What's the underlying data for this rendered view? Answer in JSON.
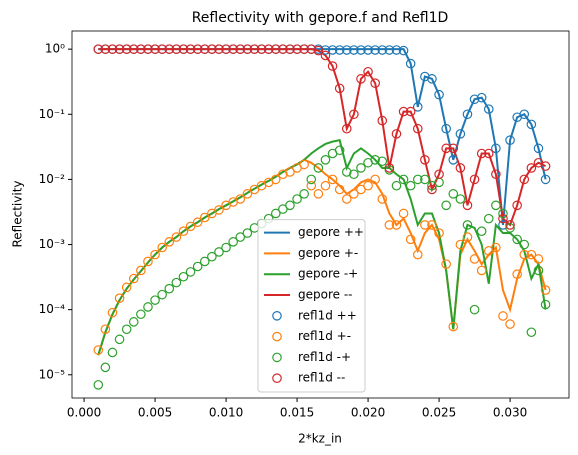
{
  "chart_data": {
    "type": "line",
    "title": "Reflectivity with gepore.f and Refl1D",
    "x_label": "2*kz_in",
    "y_label": "Reflectivity",
    "xlim": [
      -0.00085,
      0.03415
    ],
    "ylim": [
      4.4e-06,
      1.9
    ],
    "y_scale": "log",
    "legend": "lower center",
    "xticks": [
      {
        "value": 0,
        "label": "0.000"
      },
      0.005,
      {
        "value": 0.01,
        "label": "0.010"
      },
      0.015,
      {
        "value": 0.02,
        "label": "0.020"
      },
      0.025,
      {
        "value": 0.03,
        "label": "0.030"
      }
    ],
    "yticks": [
      {
        "value": 1e-05,
        "label": "10⁻⁵"
      },
      {
        "value": 0.0001,
        "label": "10⁻⁴"
      },
      {
        "value": 0.001,
        "label": "10⁻³"
      },
      {
        "value": 0.01,
        "label": "10⁻²"
      },
      {
        "value": 0.1,
        "label": "10⁻¹"
      },
      {
        "value": 1,
        "label": "10⁰"
      }
    ],
    "x": [
      0.001,
      0.0015,
      0.002,
      0.0025,
      0.003,
      0.0035,
      0.004,
      0.0045,
      0.005,
      0.0055,
      0.006,
      0.0065,
      0.007,
      0.0075,
      0.008,
      0.0085,
      0.009,
      0.0095,
      0.01,
      0.0105,
      0.011,
      0.0115,
      0.012,
      0.0125,
      0.013,
      0.0135,
      0.014,
      0.0145,
      0.015,
      0.0155,
      0.016,
      0.0165,
      0.017,
      0.0175,
      0.018,
      0.0185,
      0.019,
      0.0195,
      0.02,
      0.0205,
      0.021,
      0.0215,
      0.022,
      0.0225,
      0.023,
      0.0235,
      0.024,
      0.0245,
      0.025,
      0.0255,
      0.026,
      0.0265,
      0.027,
      0.0275,
      0.028,
      0.0285,
      0.029,
      0.0295,
      0.03,
      0.0305,
      0.031,
      0.0315,
      0.032,
      0.0325
    ],
    "series": [
      {
        "name": "gepore ++",
        "color": "#1f77b4",
        "mode": "line",
        "values": [
          1,
          1,
          1,
          1,
          1,
          1,
          1,
          1,
          1,
          1,
          1,
          1,
          1,
          1,
          1,
          1,
          1,
          1,
          1,
          1,
          1,
          1,
          1,
          1,
          1,
          1,
          1,
          1,
          1,
          1,
          1,
          1,
          1,
          1,
          1,
          1,
          1,
          1,
          1,
          1,
          1,
          1,
          1,
          1,
          0.6,
          0.13,
          0.38,
          0.35,
          0.2,
          0.06,
          0.02,
          0.05,
          0.1,
          0.17,
          0.18,
          0.12,
          0.03,
          0.002,
          0.04,
          0.09,
          0.1,
          0.07,
          0.03,
          0.01
        ]
      },
      {
        "name": "gepore +-",
        "color": "#ff7f0e",
        "mode": "line",
        "values": [
          2e-05,
          4.5e-05,
          8.5e-05,
          0.00014,
          0.00021,
          0.00029,
          0.00039,
          0.00053,
          0.0007,
          0.0009,
          0.0011,
          0.0013,
          0.0016,
          0.0019,
          0.0022,
          0.0026,
          0.003,
          0.0035,
          0.004,
          0.0046,
          0.0053,
          0.0062,
          0.0072,
          0.0083,
          0.0095,
          0.011,
          0.013,
          0.015,
          0.017,
          0.02,
          0.018,
          0.015,
          0.012,
          0.01,
          0.008,
          0.006,
          0.007,
          0.009,
          0.01,
          0.009,
          0.006,
          0.003,
          0.002,
          0.0025,
          0.0015,
          0.0008,
          0.0015,
          0.002,
          0.0012,
          0.0004,
          5e-05,
          0.0007,
          0.0012,
          0.0008,
          0.0005,
          0.0007,
          0.0009,
          0.0002,
          0.0001,
          0.0003,
          0.0006,
          0.0007,
          0.0005,
          0.0002
        ]
      },
      {
        "name": "gepore -+",
        "color": "#2ca02c",
        "mode": "line",
        "values": [
          2e-05,
          4.5e-05,
          8.5e-05,
          0.00014,
          0.00021,
          0.00029,
          0.00039,
          0.00053,
          0.0007,
          0.0009,
          0.0011,
          0.0013,
          0.0016,
          0.0019,
          0.0022,
          0.0026,
          0.003,
          0.0035,
          0.004,
          0.0046,
          0.0053,
          0.0062,
          0.0072,
          0.0083,
          0.0095,
          0.011,
          0.013,
          0.015,
          0.017,
          0.02,
          0.025,
          0.03,
          0.035,
          0.038,
          0.04,
          0.015,
          0.025,
          0.03,
          0.025,
          0.02,
          0.015,
          0.015,
          0.012,
          0.01,
          0.005,
          0.002,
          0.003,
          0.003,
          0.0015,
          0.0004,
          5e-05,
          0.0008,
          0.002,
          0.0018,
          0.001,
          0.00025,
          0.002,
          0.0015,
          0.0015,
          0.0012,
          0.0008,
          0.0003,
          0.0005,
          0.0001
        ]
      },
      {
        "name": "gepore --",
        "color": "#d62728",
        "mode": "line",
        "values": [
          1,
          1,
          1,
          1,
          1,
          1,
          1,
          1,
          1,
          1,
          1,
          1,
          1,
          1,
          1,
          1,
          1,
          1,
          1,
          1,
          1,
          1,
          1,
          1,
          1,
          1,
          1,
          1,
          1,
          1,
          1,
          0.95,
          0.8,
          0.55,
          0.25,
          0.06,
          0.1,
          0.35,
          0.45,
          0.3,
          0.08,
          0.015,
          0.05,
          0.11,
          0.11,
          0.06,
          0.02,
          0.007,
          0.012,
          0.03,
          0.03,
          0.015,
          0.004,
          0.01,
          0.025,
          0.025,
          0.012,
          0.0025,
          0.002,
          0.004,
          0.01,
          0.015,
          0.018,
          0.016
        ]
      },
      {
        "name": "refl1d ++",
        "color": "#1f77b4",
        "mode": "markers",
        "values": [
          1,
          1,
          1,
          1,
          1,
          1,
          1,
          1,
          1,
          1,
          1,
          1,
          1,
          1,
          1,
          1,
          1,
          1,
          1,
          1,
          1,
          1,
          1,
          1,
          1,
          1,
          1,
          1,
          1,
          1,
          1,
          1,
          0.97,
          0.97,
          0.97,
          0.97,
          0.97,
          0.97,
          0.97,
          0.97,
          0.97,
          0.97,
          0.97,
          0.95,
          0.6,
          0.13,
          0.38,
          0.35,
          0.2,
          0.06,
          0.02,
          0.05,
          0.1,
          0.17,
          0.18,
          0.12,
          0.03,
          0.002,
          0.04,
          0.09,
          0.1,
          0.07,
          0.03,
          0.01
        ]
      },
      {
        "name": "refl1d +-",
        "color": "#ff7f0e",
        "mode": "markers",
        "values": [
          2.4e-05,
          5e-05,
          9e-05,
          0.00015,
          0.00022,
          0.0003,
          0.0004,
          0.00055,
          0.0007,
          0.0009,
          0.0011,
          0.0013,
          0.0016,
          0.0019,
          0.0022,
          0.0026,
          0.003,
          0.0034,
          0.004,
          0.0045,
          0.005,
          0.006,
          0.007,
          0.008,
          0.009,
          0.01,
          0.012,
          0.013,
          0.015,
          0.017,
          0.008,
          0.006,
          0.008,
          0.01,
          0.007,
          0.005,
          0.006,
          0.007,
          0.008,
          0.01,
          0.005,
          0.002,
          0.002,
          0.003,
          0.0012,
          0.0007,
          0.002,
          0.002,
          0.0015,
          0.0005,
          5.5e-05,
          0.001,
          0.0013,
          0.0006,
          0.0004,
          0.0008,
          0.0009,
          8e-05,
          6e-05,
          0.00035,
          0.0007,
          0.0007,
          0.0006,
          0.0002
        ]
      },
      {
        "name": "refl1d -+",
        "color": "#2ca02c",
        "mode": "markers",
        "values": [
          7e-06,
          1.3e-05,
          2.2e-05,
          3.5e-05,
          5e-05,
          6.5e-05,
          8.5e-05,
          0.00011,
          0.00014,
          0.00017,
          0.00021,
          0.00026,
          0.00032,
          0.00038,
          0.00046,
          0.00055,
          0.00065,
          0.00077,
          0.0009,
          0.0011,
          0.0013,
          0.0015,
          0.0018,
          0.0021,
          0.0025,
          0.003,
          0.0035,
          0.004,
          0.005,
          0.006,
          0.01,
          0.015,
          0.02,
          0.025,
          0.028,
          0.013,
          0.012,
          0.015,
          0.018,
          0.02,
          0.019,
          0.014,
          0.008,
          0.01,
          0.008,
          0.01,
          0.01,
          0.008,
          0.009,
          0.004,
          0.006,
          0.005,
          0.002,
          0.0001,
          0.0016,
          0.0025,
          0.004,
          0.003,
          0.0018,
          0.0012,
          0.001,
          4.5e-05,
          0.0004,
          0.00012
        ]
      },
      {
        "name": "refl1d --",
        "color": "#d62728",
        "mode": "markers",
        "values": [
          1,
          1,
          1,
          1,
          1,
          1,
          1,
          1,
          1,
          1,
          1,
          1,
          1,
          1,
          1,
          1,
          1,
          1,
          1,
          1,
          1,
          1,
          1,
          1,
          1,
          1,
          1,
          1,
          1,
          1,
          1,
          0.95,
          0.8,
          0.55,
          0.25,
          0.06,
          0.1,
          0.35,
          0.45,
          0.3,
          0.08,
          0.015,
          0.05,
          0.11,
          0.11,
          0.06,
          0.02,
          0.007,
          0.012,
          0.03,
          0.03,
          0.015,
          0.004,
          0.01,
          0.025,
          0.025,
          0.012,
          0.0025,
          0.002,
          0.004,
          0.01,
          0.015,
          0.018,
          0.016
        ]
      }
    ]
  }
}
